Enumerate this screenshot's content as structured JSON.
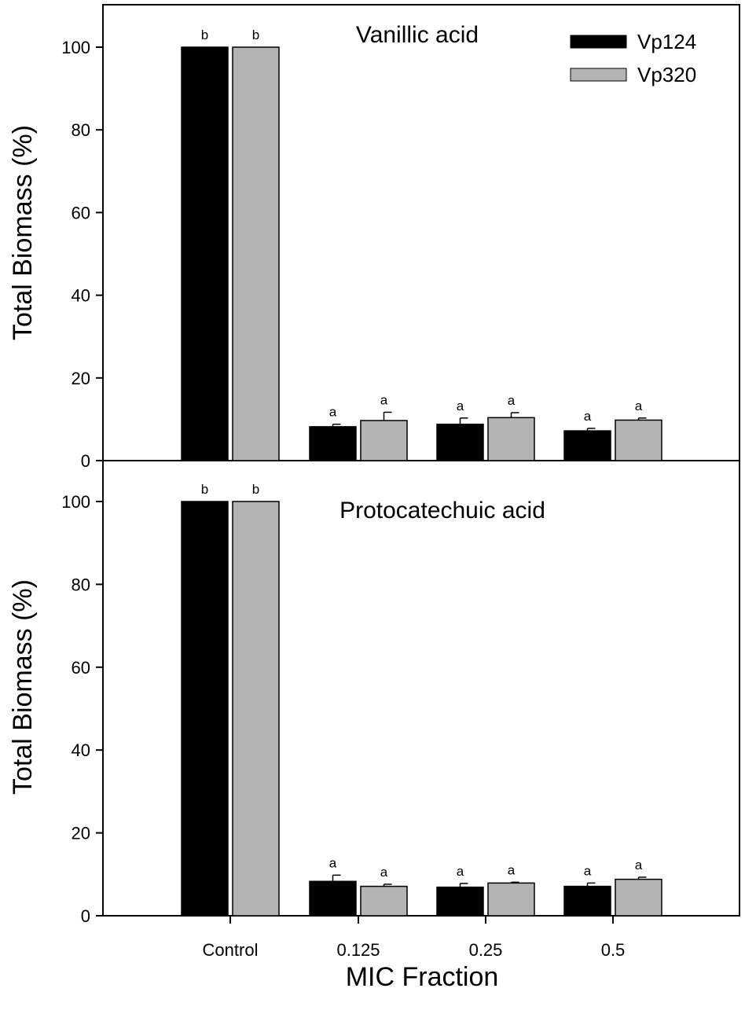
{
  "colors": {
    "Vp124": "#000000",
    "Vp320": "#b4b4b4"
  },
  "legend": {
    "placement": "top-right",
    "items": [
      {
        "label": "Vp124",
        "color": "#000000"
      },
      {
        "label": "Vp320",
        "color": "#b4b4b4"
      }
    ]
  },
  "xlabel": "MIC Fraction",
  "chart_data": [
    {
      "type": "bar",
      "title": "Vanillic acid",
      "xlabel": "MIC Fraction",
      "ylabel": "Total Biomass (%)",
      "ylim": [
        0,
        100
      ],
      "yticks": [
        "0",
        "20",
        "40",
        "60",
        "80",
        "100"
      ],
      "categories": [
        "Control",
        "0.125",
        "0.25",
        "0.5"
      ],
      "series": [
        {
          "name": "Vp124",
          "color": "#000000",
          "values": [
            100,
            8.2,
            8.8,
            7.2
          ],
          "errors": [
            0,
            0.6,
            1.5,
            0.6
          ],
          "labels": [
            "b",
            "a",
            "a",
            "a"
          ]
        },
        {
          "name": "Vp320",
          "color": "#b4b4b4",
          "values": [
            100,
            9.7,
            10.4,
            9.8
          ],
          "errors": [
            0,
            2.0,
            1.2,
            0.5
          ],
          "labels": [
            "b",
            "a",
            "a",
            "a"
          ]
        }
      ],
      "legend": "top-right",
      "grid": false
    },
    {
      "type": "bar",
      "title": "Protocatechuic acid",
      "xlabel": "MIC Fraction",
      "ylabel": "Total Biomass (%)",
      "ylim": [
        0,
        100
      ],
      "yticks": [
        "0",
        "20",
        "40",
        "60",
        "80",
        "100"
      ],
      "categories": [
        "Control",
        "0.125",
        "0.25",
        "0.5"
      ],
      "series": [
        {
          "name": "Vp124",
          "color": "#000000",
          "values": [
            100,
            8.3,
            6.9,
            7.1
          ],
          "errors": [
            0,
            1.5,
            0.9,
            0.8
          ],
          "labels": [
            "b",
            "a",
            "a",
            "a"
          ]
        },
        {
          "name": "Vp320",
          "color": "#b4b4b4",
          "values": [
            100,
            7.1,
            7.9,
            8.8
          ],
          "errors": [
            0,
            0.5,
            0.2,
            0.5
          ],
          "labels": [
            "b",
            "a",
            "a",
            "a"
          ]
        }
      ],
      "grid": false
    }
  ]
}
